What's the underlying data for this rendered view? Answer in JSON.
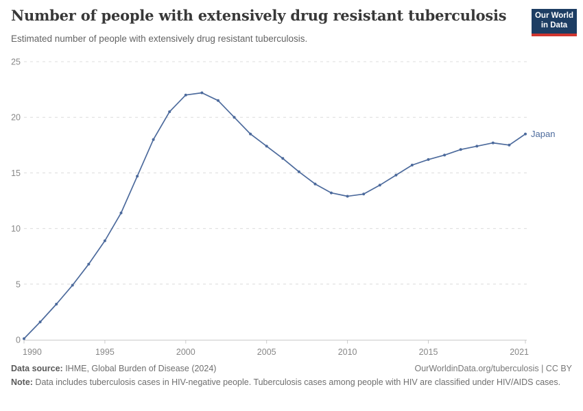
{
  "header": {
    "title": "Number of people with extensively drug resistant tuberculosis",
    "subtitle": "Estimated number of people with extensively drug resistant tuberculosis.",
    "logo": {
      "line1": "Our World",
      "line2": "in Data"
    }
  },
  "chart_data": {
    "type": "line",
    "title": "Number of people with extensively drug resistant tuberculosis",
    "xlabel": "",
    "ylabel": "",
    "xlim": [
      1990,
      2021
    ],
    "ylim": [
      0,
      25
    ],
    "grid": "horizontal-dashed",
    "legend_position": "end-of-line",
    "xticks": [
      1990,
      1995,
      2000,
      2005,
      2010,
      2015,
      2021
    ],
    "yticks": [
      0,
      5,
      10,
      15,
      20,
      25
    ],
    "x": [
      1990,
      1991,
      1992,
      1993,
      1994,
      1995,
      1996,
      1997,
      1998,
      1999,
      2000,
      2001,
      2002,
      2003,
      2004,
      2005,
      2006,
      2007,
      2008,
      2009,
      2010,
      2011,
      2012,
      2013,
      2014,
      2015,
      2016,
      2017,
      2018,
      2019,
      2020,
      2021
    ],
    "series": [
      {
        "name": "Japan",
        "color": "#4c6a9c",
        "values": [
          0.1,
          1.6,
          3.2,
          4.9,
          6.8,
          8.9,
          11.4,
          14.7,
          18.0,
          20.5,
          22.0,
          22.2,
          21.5,
          20.0,
          18.5,
          17.4,
          16.3,
          15.1,
          14.0,
          13.2,
          12.9,
          13.1,
          13.9,
          14.8,
          15.7,
          16.2,
          16.6,
          17.1,
          17.4,
          17.7,
          17.5,
          18.5
        ]
      }
    ],
    "colors": {
      "gridline": "#dcdcdc",
      "axis": "#c9c9c9",
      "tick_label": "#878787"
    }
  },
  "footer": {
    "source_label": "Data source:",
    "source_text": " IHME, Global Burden of Disease (2024)",
    "link_text": "OurWorldinData.org/tuberculosis | CC BY",
    "note_label": "Note:",
    "note_text": " Data includes tuberculosis cases in HIV-negative people. Tuberculosis cases among people with HIV are classified under HIV/AIDS cases."
  }
}
